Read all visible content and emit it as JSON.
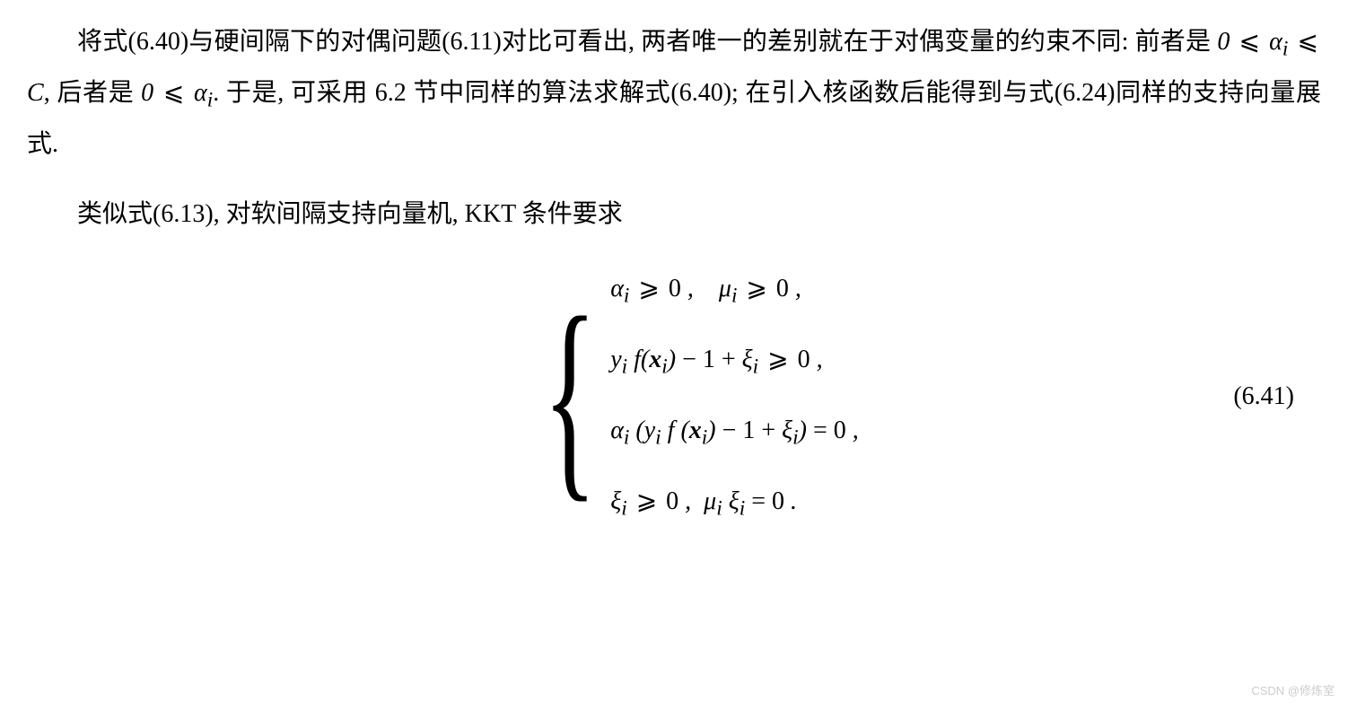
{
  "para1_part1": "将式(6.40)与硬间隔下的对偶问题(6.11)对比可看出, 两者唯一的差别就在于对偶变量的约束不同: 前者是 ",
  "para1_math1_html": "0 <span class='geq'>⩽</span> <i>α</i><sub>i</sub> <span class='geq'>⩽</span> <i>C</i>",
  "para1_part2": ", 后者是 ",
  "para1_math2_html": "0 <span class='geq'>⩽</span> <i>α</i><sub>i</sub>",
  "para1_part3": ". 于是, 可采用 6.2 节中同样的算法求解式(6.40); 在引入核函数后能得到与式(6.24)同样的支持向量展式.",
  "para2": "类似式(6.13), 对软间隔支持向量机, KKT 条件要求",
  "eq": {
    "line1_html": "<i>α</i><sub>i</sub> <span class='geq'>⩾</span> <span class='upright'>0</span> ,&nbsp;&nbsp;&nbsp;&nbsp;<i>μ</i><sub>i</sub> <span class='geq'>⩾</span> <span class='upright'>0</span> ,",
    "line2_html": "<i>y</i><sub>i</sub> <i>f</i>(<span class='bold'>x</span><sub>i</sub>) <span class='upright'>−</span> <span class='upright'>1</span> <span class='upright'>+</span> <i>ξ</i><sub>i</sub> <span class='geq'>⩾</span> <span class='upright'>0</span> ,",
    "line3_html": "<i>α</i><sub>i</sub> (<i>y</i><sub>i</sub> <i>f</i> (<span class='bold'>x</span><sub>i</sub>) <span class='upright'>−</span> <span class='upright'>1</span> <span class='upright'>+</span> <i>ξ</i><sub>i</sub>) <span class='upright'>=</span> <span class='upright'>0</span> ,",
    "line4_html": "<i>ξ</i><sub>i</sub> <span class='geq'>⩾</span> <span class='upright'>0</span> ,&nbsp;&nbsp;<i>μ</i><sub>i</sub> <i>ξ</i><sub>i</sub> <span class='upright'>=</span> <span class='upright'>0</span> ."
  },
  "eq_number": "(6.41)",
  "watermark": "CSDN @修炼室"
}
